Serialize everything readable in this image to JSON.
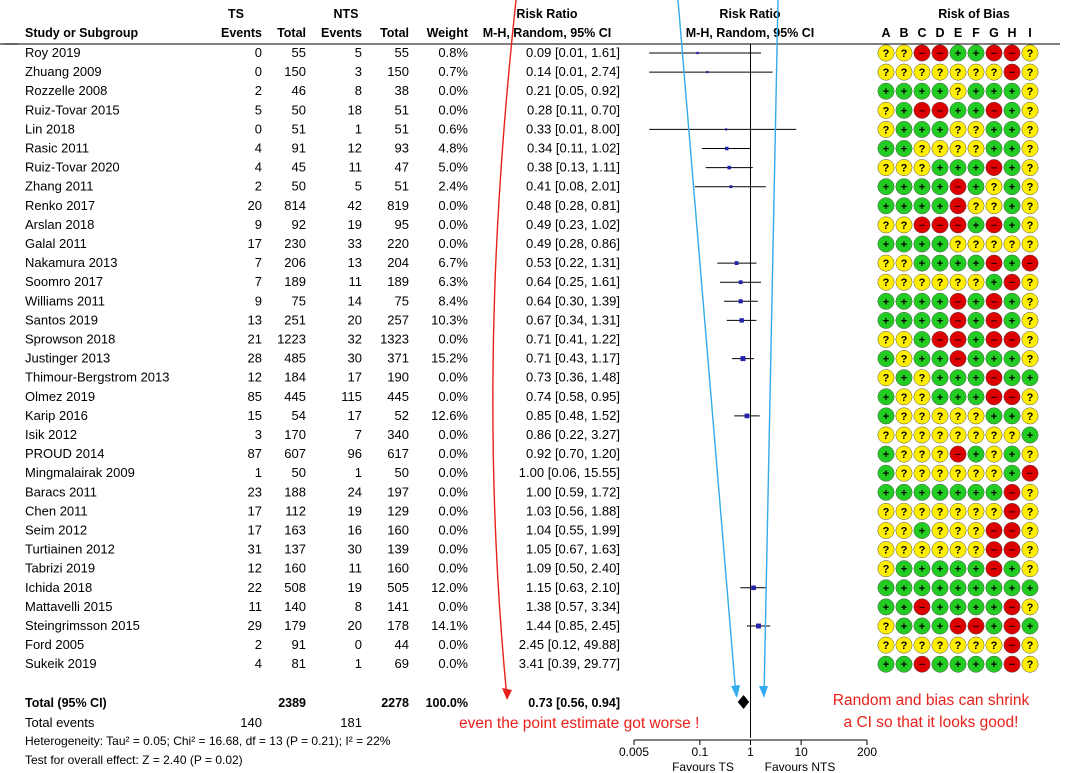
{
  "headers": {
    "study": "Study or Subgroup",
    "ts_group": "TS",
    "nts_group": "NTS",
    "events": "Events",
    "total": "Total",
    "weight": "Weight",
    "rr_group": "Risk Ratio",
    "rr_method": "M-H, Random, 95% CI",
    "plot_group": "Risk Ratio",
    "plot_method": "M-H, Random, 95% CI",
    "bias_group": "Risk of Bias",
    "bias_letters": [
      "A",
      "B",
      "C",
      "D",
      "E",
      "F",
      "G",
      "H",
      "I"
    ]
  },
  "summary": {
    "label": "Total (95% CI)",
    "ts_total": "2389",
    "nts_total": "2278",
    "weight": "100.0%",
    "ci_text": "0.73 [0.56, 0.94]",
    "events_label": "Total events",
    "ts_events": "140",
    "nts_events": "181",
    "heterogeneity": "Heterogeneity: Tau² = 0.05; Chi² = 16.68, df = 13 (P = 0.21); I² = 22%",
    "overall_effect": "Test for overall effect: Z = 2.40 (P = 0.02)"
  },
  "annotations": {
    "left": "even the point estimate got worse !",
    "right_line1": "Random and bias can shrink",
    "right_line2": "a CI so that it looks good!"
  },
  "axis": {
    "ticks": [
      "0.005",
      "0.1",
      "1",
      "10",
      "200"
    ],
    "favours_left": "Favours TS",
    "favours_right": "Favours NTS"
  },
  "colors": {
    "green": "#22cc22",
    "yellow": "#ffee00",
    "red": "#dd0000",
    "annotation": "#e8201a",
    "arrow": "#33aaee",
    "marker": "#2222aa"
  },
  "chart_data": {
    "type": "forest",
    "scale": "log",
    "xlim": [
      0.005,
      200
    ],
    "null_line": 1,
    "studies": [
      {
        "name": "Roy 2019",
        "ts_e": "0",
        "ts_n": "55",
        "nts_e": "5",
        "nts_n": "55",
        "weight": "0.8%",
        "ci": "0.09 [0.01, 1.61]",
        "rr": 0.09,
        "lo": 0.01,
        "hi": 1.61,
        "bias": "YYRRGGRRY"
      },
      {
        "name": "Zhuang 2009",
        "ts_e": "0",
        "ts_n": "150",
        "nts_e": "3",
        "nts_n": "150",
        "weight": "0.7%",
        "ci": "0.14 [0.01, 2.74]",
        "rr": 0.14,
        "lo": 0.01,
        "hi": 2.74,
        "bias": "YYYYYYYRY"
      },
      {
        "name": "Rozzelle 2008",
        "ts_e": "2",
        "ts_n": "46",
        "nts_e": "8",
        "nts_n": "38",
        "weight": "0.0%",
        "ci": "0.21 [0.05, 0.92]",
        "rr": 0.21,
        "lo": 0.05,
        "hi": 0.92,
        "bias": "GGGGYGGGY"
      },
      {
        "name": "Ruiz-Tovar 2015",
        "ts_e": "5",
        "ts_n": "50",
        "nts_e": "18",
        "nts_n": "51",
        "weight": "0.0%",
        "ci": "0.28 [0.11, 0.70]",
        "rr": 0.28,
        "lo": 0.11,
        "hi": 0.7,
        "bias": "YGRRGGRGY"
      },
      {
        "name": "Lin 2018",
        "ts_e": "0",
        "ts_n": "51",
        "nts_e": "1",
        "nts_n": "51",
        "weight": "0.6%",
        "ci": "0.33 [0.01, 8.00]",
        "rr": 0.33,
        "lo": 0.01,
        "hi": 8.0,
        "bias": "YGGGYYGGY"
      },
      {
        "name": "Rasic 2011",
        "ts_e": "4",
        "ts_n": "91",
        "nts_e": "12",
        "nts_n": "93",
        "weight": "4.8%",
        "ci": "0.34 [0.11, 1.02]",
        "rr": 0.34,
        "lo": 0.11,
        "hi": 1.02,
        "bias": "GGYYYYGGY"
      },
      {
        "name": "Ruiz-Tovar 2020",
        "ts_e": "4",
        "ts_n": "45",
        "nts_e": "11",
        "nts_n": "47",
        "weight": "5.0%",
        "ci": "0.38 [0.13, 1.11]",
        "rr": 0.38,
        "lo": 0.13,
        "hi": 1.11,
        "bias": "YYYGGGRGY"
      },
      {
        "name": "Zhang 2011",
        "ts_e": "2",
        "ts_n": "50",
        "nts_e": "5",
        "nts_n": "51",
        "weight": "2.4%",
        "ci": "0.41 [0.08, 2.01]",
        "rr": 0.41,
        "lo": 0.08,
        "hi": 2.01,
        "bias": "GGGGRGYGY"
      },
      {
        "name": "Renko 2017",
        "ts_e": "20",
        "ts_n": "814",
        "nts_e": "42",
        "nts_n": "819",
        "weight": "0.0%",
        "ci": "0.48 [0.28, 0.81]",
        "rr": 0.48,
        "lo": 0.28,
        "hi": 0.81,
        "bias": "GGGGRYYGY"
      },
      {
        "name": "Arslan 2018",
        "ts_e": "9",
        "ts_n": "92",
        "nts_e": "19",
        "nts_n": "95",
        "weight": "0.0%",
        "ci": "0.49 [0.23, 1.02]",
        "rr": 0.49,
        "lo": 0.23,
        "hi": 1.02,
        "bias": "YYRRRGRGY"
      },
      {
        "name": "Galal 2011",
        "ts_e": "17",
        "ts_n": "230",
        "nts_e": "33",
        "nts_n": "220",
        "weight": "0.0%",
        "ci": "0.49 [0.28, 0.86]",
        "rr": 0.49,
        "lo": 0.28,
        "hi": 0.86,
        "bias": "GGGGYYYYY"
      },
      {
        "name": "Nakamura 2013",
        "ts_e": "7",
        "ts_n": "206",
        "nts_e": "13",
        "nts_n": "204",
        "weight": "6.7%",
        "ci": "0.53 [0.22, 1.31]",
        "rr": 0.53,
        "lo": 0.22,
        "hi": 1.31,
        "bias": "YYGGGGRGR"
      },
      {
        "name": "Soomro 2017",
        "ts_e": "7",
        "ts_n": "189",
        "nts_e": "11",
        "nts_n": "189",
        "weight": "6.3%",
        "ci": "0.64 [0.25, 1.61]",
        "rr": 0.64,
        "lo": 0.25,
        "hi": 1.61,
        "bias": "YYYYYYGRY"
      },
      {
        "name": "Williams 2011",
        "ts_e": "9",
        "ts_n": "75",
        "nts_e": "14",
        "nts_n": "75",
        "weight": "8.4%",
        "ci": "0.64 [0.30, 1.39]",
        "rr": 0.64,
        "lo": 0.3,
        "hi": 1.39,
        "bias": "GGGGRGRGY"
      },
      {
        "name": "Santos 2019",
        "ts_e": "13",
        "ts_n": "251",
        "nts_e": "20",
        "nts_n": "257",
        "weight": "10.3%",
        "ci": "0.67 [0.34, 1.31]",
        "rr": 0.67,
        "lo": 0.34,
        "hi": 1.31,
        "bias": "GGGGRGRGY"
      },
      {
        "name": "Sprowson 2018",
        "ts_e": "21",
        "ts_n": "1223",
        "nts_e": "32",
        "nts_n": "1323",
        "weight": "0.0%",
        "ci": "0.71 [0.41, 1.22]",
        "rr": 0.71,
        "lo": 0.41,
        "hi": 1.22,
        "bias": "YYGRRGRRY"
      },
      {
        "name": "Justinger 2013",
        "ts_e": "28",
        "ts_n": "485",
        "nts_e": "30",
        "nts_n": "371",
        "weight": "15.2%",
        "ci": "0.71 [0.43, 1.17]",
        "rr": 0.71,
        "lo": 0.43,
        "hi": 1.17,
        "bias": "GYGGRGGGY"
      },
      {
        "name": "Thimour-Bergstrom 2013",
        "ts_e": "12",
        "ts_n": "184",
        "nts_e": "17",
        "nts_n": "190",
        "weight": "0.0%",
        "ci": "0.73 [0.36, 1.48]",
        "rr": 0.73,
        "lo": 0.36,
        "hi": 1.48,
        "bias": "YGYGGGRGG"
      },
      {
        "name": "Olmez 2019",
        "ts_e": "85",
        "ts_n": "445",
        "nts_e": "115",
        "nts_n": "445",
        "weight": "0.0%",
        "ci": "0.74 [0.58, 0.95]",
        "rr": 0.74,
        "lo": 0.58,
        "hi": 0.95,
        "bias": "GYYGGGRRY"
      },
      {
        "name": "Karip 2016",
        "ts_e": "15",
        "ts_n": "54",
        "nts_e": "17",
        "nts_n": "52",
        "weight": "12.6%",
        "ci": "0.85 [0.48, 1.52]",
        "rr": 0.85,
        "lo": 0.48,
        "hi": 1.52,
        "bias": "GYYYYYGGY"
      },
      {
        "name": "Isik 2012",
        "ts_e": "3",
        "ts_n": "170",
        "nts_e": "7",
        "nts_n": "340",
        "weight": "0.0%",
        "ci": "0.86 [0.22, 3.27]",
        "rr": 0.86,
        "lo": 0.22,
        "hi": 3.27,
        "bias": "YYYYYYYYG"
      },
      {
        "name": "PROUD 2014",
        "ts_e": "87",
        "ts_n": "607",
        "nts_e": "96",
        "nts_n": "617",
        "weight": "0.0%",
        "ci": "0.92 [0.70, 1.20]",
        "rr": 0.92,
        "lo": 0.7,
        "hi": 1.2,
        "bias": "GYYYRGYGY"
      },
      {
        "name": "Mingmalairak 2009",
        "ts_e": "1",
        "ts_n": "50",
        "nts_e": "1",
        "nts_n": "50",
        "weight": "0.0%",
        "ci": "1.00 [0.06, 15.55]",
        "rr": 1.0,
        "lo": 0.06,
        "hi": 15.55,
        "bias": "GYYYYYYGR"
      },
      {
        "name": "Baracs 2011",
        "ts_e": "23",
        "ts_n": "188",
        "nts_e": "24",
        "nts_n": "197",
        "weight": "0.0%",
        "ci": "1.00 [0.59, 1.72]",
        "rr": 1.0,
        "lo": 0.59,
        "hi": 1.72,
        "bias": "GGGGGGGRY"
      },
      {
        "name": "Chen 2011",
        "ts_e": "17",
        "ts_n": "112",
        "nts_e": "19",
        "nts_n": "129",
        "weight": "0.0%",
        "ci": "1.03 [0.56, 1.88]",
        "rr": 1.03,
        "lo": 0.56,
        "hi": 1.88,
        "bias": "YYYYYYYRY"
      },
      {
        "name": "Seim 2012",
        "ts_e": "17",
        "ts_n": "163",
        "nts_e": "16",
        "nts_n": "160",
        "weight": "0.0%",
        "ci": "1.04 [0.55, 1.99]",
        "rr": 1.04,
        "lo": 0.55,
        "hi": 1.99,
        "bias": "YYGYYYRRY"
      },
      {
        "name": "Turtiainen 2012",
        "ts_e": "31",
        "ts_n": "137",
        "nts_e": "30",
        "nts_n": "139",
        "weight": "0.0%",
        "ci": "1.05 [0.67, 1.63]",
        "rr": 1.05,
        "lo": 0.67,
        "hi": 1.63,
        "bias": "YYYYYYRRY"
      },
      {
        "name": "Tabrizi 2019",
        "ts_e": "12",
        "ts_n": "160",
        "nts_e": "11",
        "nts_n": "160",
        "weight": "0.0%",
        "ci": "1.09 [0.50, 2.40]",
        "rr": 1.09,
        "lo": 0.5,
        "hi": 2.4,
        "bias": "YGGGGGRGY"
      },
      {
        "name": "Ichida 2018",
        "ts_e": "22",
        "ts_n": "508",
        "nts_e": "19",
        "nts_n": "505",
        "weight": "12.0%",
        "ci": "1.15 [0.63, 2.10]",
        "rr": 1.15,
        "lo": 0.63,
        "hi": 2.1,
        "bias": "GGGGGGGGG"
      },
      {
        "name": "Mattavelli 2015",
        "ts_e": "11",
        "ts_n": "140",
        "nts_e": "8",
        "nts_n": "141",
        "weight": "0.0%",
        "ci": "1.38 [0.57, 3.34]",
        "rr": 1.38,
        "lo": 0.57,
        "hi": 3.34,
        "bias": "GGRGGGGRY"
      },
      {
        "name": "Steingrimsson 2015",
        "ts_e": "29",
        "ts_n": "179",
        "nts_e": "20",
        "nts_n": "178",
        "weight": "14.1%",
        "ci": "1.44 [0.85, 2.45]",
        "rr": 1.44,
        "lo": 0.85,
        "hi": 2.45,
        "bias": "YGGGRRGRG"
      },
      {
        "name": "Ford 2005",
        "ts_e": "2",
        "ts_n": "91",
        "nts_e": "0",
        "nts_n": "44",
        "weight": "0.0%",
        "ci": "2.45 [0.12, 49.88]",
        "rr": 2.45,
        "lo": 0.12,
        "hi": 49.88,
        "bias": "YYYYYYYRY"
      },
      {
        "name": "Sukeik 2019",
        "ts_e": "4",
        "ts_n": "81",
        "nts_e": "1",
        "nts_n": "69",
        "weight": "0.0%",
        "ci": "3.41 [0.39, 29.77]",
        "rr": 3.41,
        "lo": 0.39,
        "hi": 29.77,
        "bias": "GGRGGGGRY"
      }
    ],
    "pooled": {
      "rr": 0.73,
      "lo": 0.56,
      "hi": 0.94
    }
  }
}
